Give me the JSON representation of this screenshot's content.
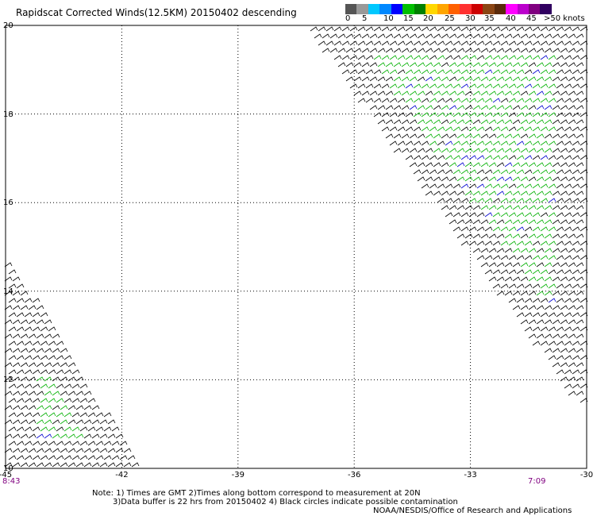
{
  "title": "Rapidscat Corrected Winds(12.5KM) 20150402 descending",
  "legend": {
    "colors": [
      "#555555",
      "#999999",
      "#00c8ff",
      "#0088ff",
      "#0000ff",
      "#00c000",
      "#008000",
      "#ffd700",
      "#ffa500",
      "#ff6000",
      "#ff3030",
      "#cc0000",
      "#8b4513",
      "#5a2a0a",
      "#ff00ff",
      "#bb00cc",
      "#800080",
      "#300060"
    ],
    "labels": [
      "0",
      "5",
      "10",
      "15",
      "20",
      "25",
      "30",
      "35",
      "40",
      "45",
      ">50 knots"
    ]
  },
  "map_data": {
    "type": "wind_barbs",
    "lon_range": [
      -45,
      -30
    ],
    "lat_range": [
      10,
      20
    ],
    "x_ticks": [
      "-45",
      "-42",
      "-39",
      "-36",
      "-33",
      "-30"
    ],
    "y_ticks": [
      "10",
      "12",
      "14",
      "16",
      "18",
      "20"
    ],
    "grid": "dotted",
    "swaths": [
      {
        "polygon": [
          [
            -37.2,
            20
          ],
          [
            -30,
            20
          ],
          [
            -30,
            11.2
          ]
        ],
        "dominant_speed_knots": [
          15,
          25
        ],
        "edge_color": "black"
      },
      {
        "polygon": [
          [
            -45,
            14.9
          ],
          [
            -45,
            10
          ],
          [
            -41.5,
            10
          ]
        ],
        "dominant_speed_knots": [
          15,
          25
        ],
        "edge_color": "black"
      }
    ]
  },
  "times": {
    "left": "8:43",
    "right": "7:09"
  },
  "notes": [
    "Note: 1) Times are GMT 2)Times along bottom correspond to measurement at 20N",
    "3)Data buffer is 22 hrs from 20150402 4) Black circles indicate possible contamination"
  ],
  "credit": "NOAA/NESDIS/Office of Research and Applications"
}
